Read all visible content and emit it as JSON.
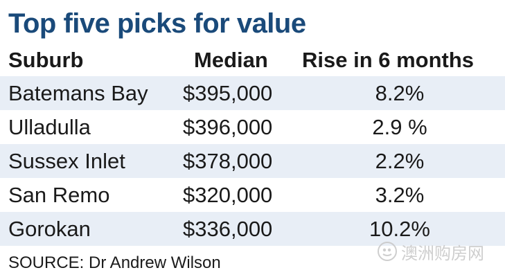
{
  "title": "Top five picks for value",
  "chart_data": {
    "type": "table",
    "title": "Top five picks for value",
    "columns": [
      "Suburb",
      "Median",
      "Rise in 6 months"
    ],
    "rows": [
      [
        "Batemans Bay",
        "$395,000",
        "8.2%"
      ],
      [
        "Ulladulla",
        "$396,000",
        "2.9 %"
      ],
      [
        "Sussex Inlet",
        "$378,000",
        "2.2%"
      ],
      [
        "San Remo",
        "$320,000",
        "3.2%"
      ],
      [
        "Gorokan",
        "$336,000",
        "10.2%"
      ]
    ],
    "source": "SOURCE: Dr Andrew Wilson"
  },
  "watermark": {
    "text": "澳洲购房网"
  },
  "colors": {
    "title": "#1a4a7a",
    "row_shade": "#e8eef6",
    "text": "#1a1a1a",
    "watermark": "#c9c9c9"
  }
}
